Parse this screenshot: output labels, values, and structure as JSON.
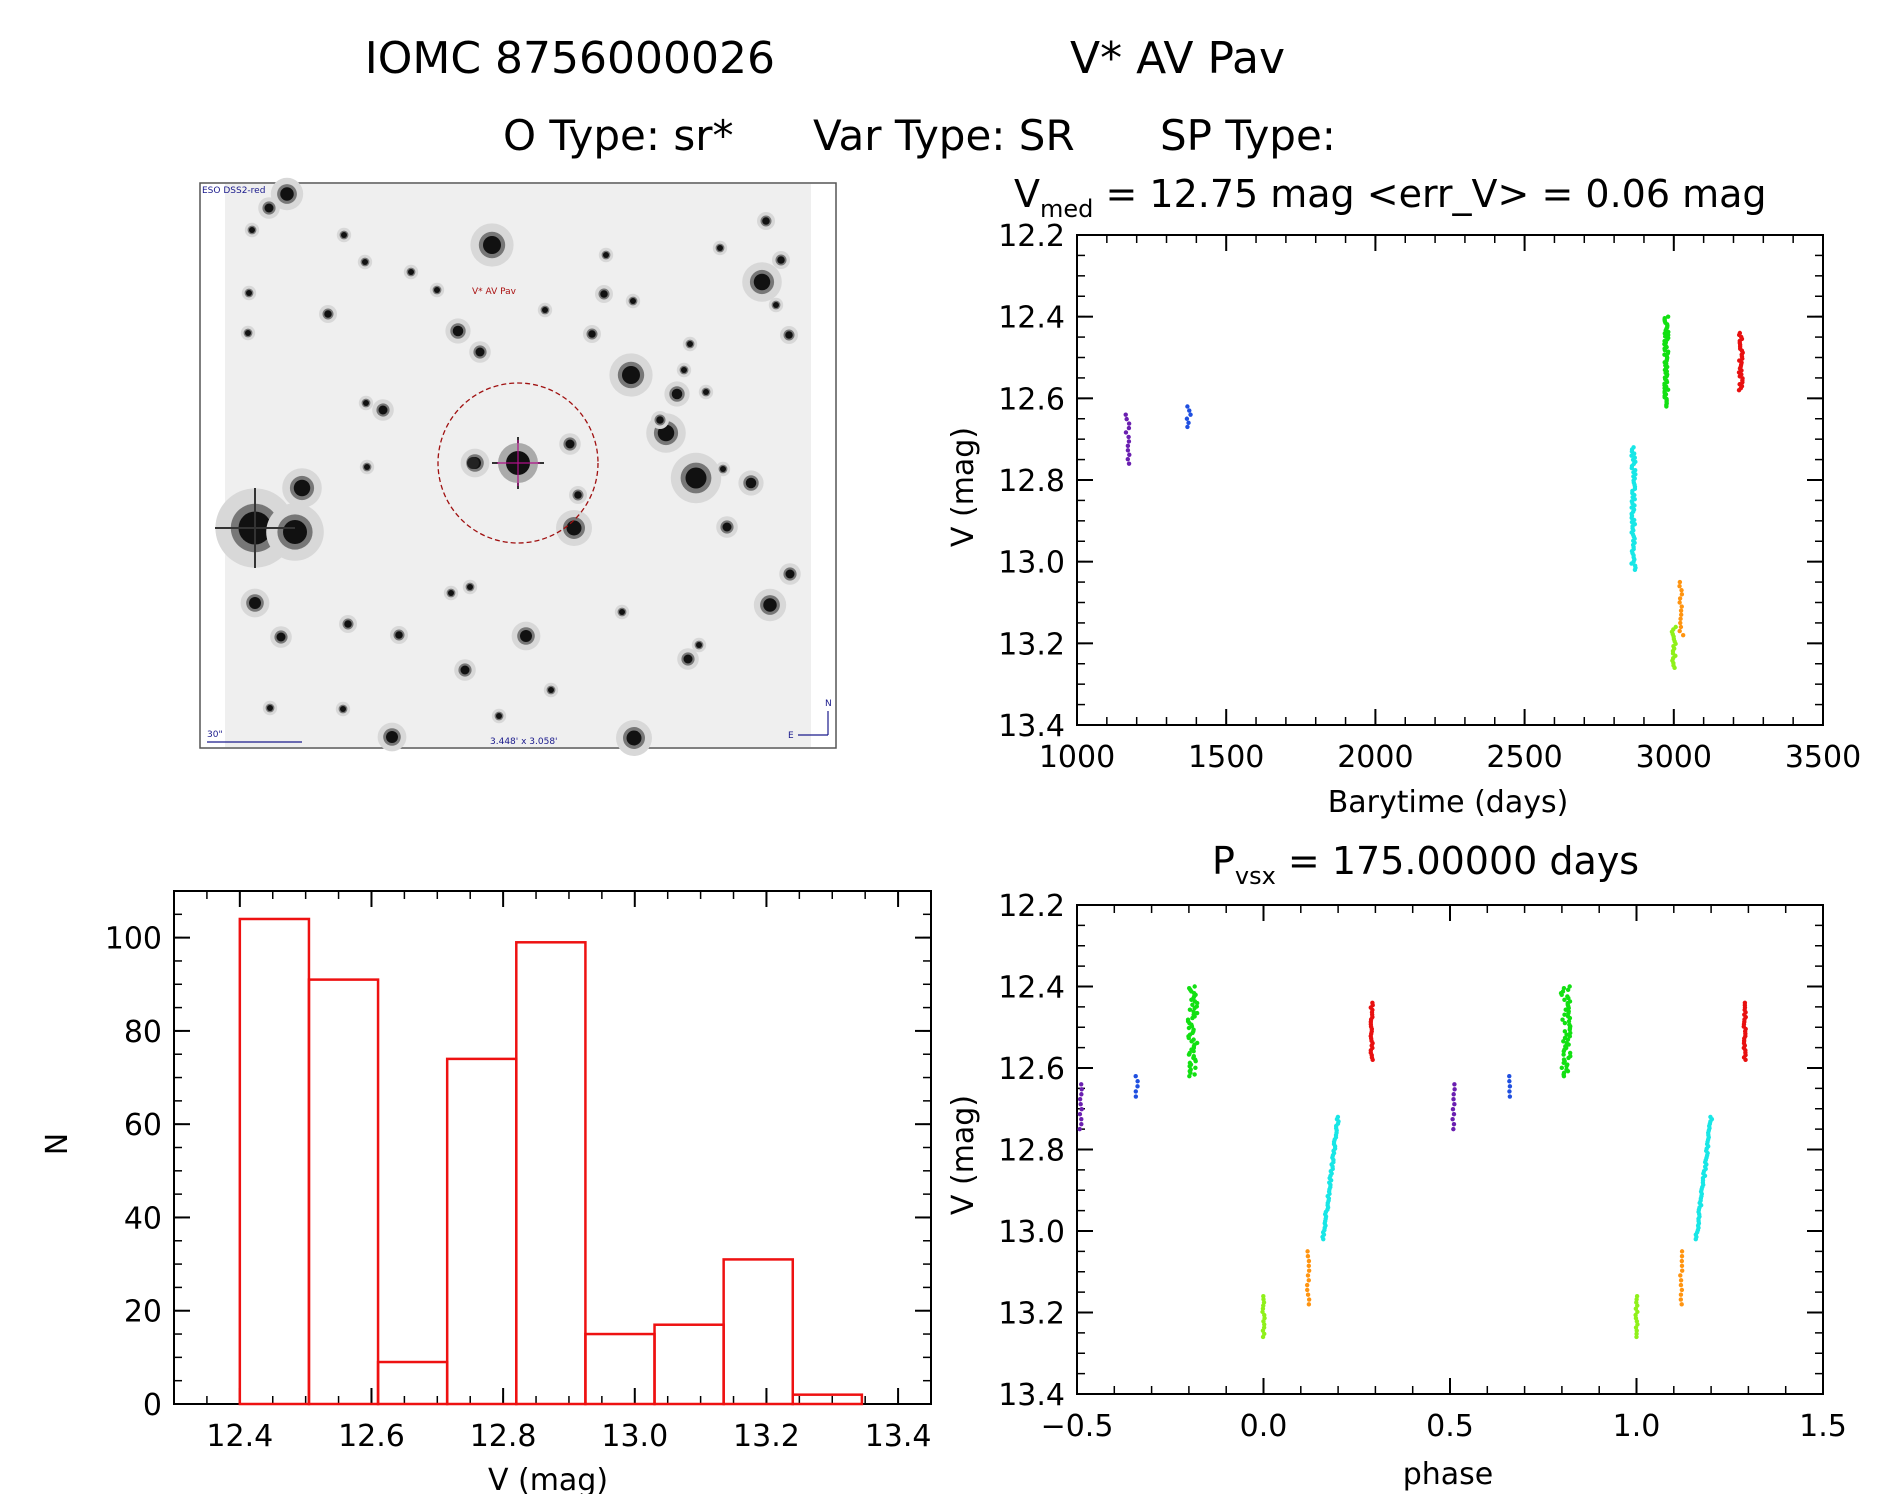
{
  "header": {
    "title_id": "IOMC 8756000026",
    "title_name": "V* AV Pav",
    "line2_otype": "O Type: sr*",
    "line2_vartype": "Var Type: SR",
    "line2_sptype": "SP Type:"
  },
  "finder": {
    "survey_label": "ESO DSS2-red",
    "target_label": "V* AV Pav",
    "scale_label": "30\"",
    "fov_label": "3.448' x 3.058'",
    "north_label": "N",
    "east_label": "E"
  },
  "colors": {
    "purple": "#6a1fb0",
    "blue": "#1f4fe0",
    "green": "#12e012",
    "cyan": "#18e6e6",
    "lime": "#8ff01a",
    "orange": "#ff9410",
    "red": "#e81010",
    "hist": "#ee1111"
  },
  "chart_data": [
    {
      "id": "lightcurve",
      "type": "scatter",
      "title_main": "V",
      "title_sub": "med",
      "title_rest": " = 12.75 mag <err_V> = 0.06 mag",
      "xlabel": "Barytime (days)",
      "ylabel": "V (mag)",
      "xlim": [
        1000,
        3500
      ],
      "ylim": [
        12.2,
        13.4
      ],
      "y_inverted": true,
      "xticks": [
        1000,
        1500,
        2000,
        2500,
        3000,
        3500
      ],
      "yticks": [
        "12.2",
        "12.4",
        "12.6",
        "12.8",
        "13.0",
        "13.2",
        "13.4"
      ],
      "series": [
        {
          "name": "season1",
          "color": "purple",
          "x": 1170,
          "ymin": 12.64,
          "ymax": 12.76,
          "n": 12
        },
        {
          "name": "season2",
          "color": "blue",
          "x": 1375,
          "ymin": 12.62,
          "ymax": 12.67,
          "n": 6
        },
        {
          "name": "season3",
          "color": "cyan",
          "x": 2865,
          "ymin": 12.72,
          "ymax": 13.02,
          "n": 60
        },
        {
          "name": "season4",
          "color": "green",
          "x": 2975,
          "ymin": 12.4,
          "ymax": 12.62,
          "n": 60
        },
        {
          "name": "season5",
          "color": "lime",
          "x": 3000,
          "ymin": 13.16,
          "ymax": 13.26,
          "n": 18
        },
        {
          "name": "season6",
          "color": "orange",
          "x": 3025,
          "ymin": 13.05,
          "ymax": 13.18,
          "n": 14
        },
        {
          "name": "season7",
          "color": "red",
          "x": 3225,
          "ymin": 12.44,
          "ymax": 12.58,
          "n": 30
        }
      ]
    },
    {
      "id": "histogram",
      "type": "bar",
      "title": "",
      "xlabel": "V (mag)",
      "ylabel": "N",
      "xlim": [
        12.3,
        13.45
      ],
      "ylim": [
        0,
        110
      ],
      "xticks": [
        "12.4",
        "12.6",
        "12.8",
        "13.0",
        "13.2",
        "13.4"
      ],
      "yticks": [
        "0",
        "20",
        "40",
        "60",
        "80",
        "100"
      ],
      "bins": [
        {
          "left": 12.4,
          "right": 12.505,
          "count": 104
        },
        {
          "left": 12.505,
          "right": 12.61,
          "count": 91
        },
        {
          "left": 12.61,
          "right": 12.715,
          "count": 9
        },
        {
          "left": 12.715,
          "right": 12.82,
          "count": 74
        },
        {
          "left": 12.82,
          "right": 12.925,
          "count": 99
        },
        {
          "left": 12.925,
          "right": 13.03,
          "count": 15
        },
        {
          "left": 13.03,
          "right": 13.135,
          "count": 17
        },
        {
          "left": 13.135,
          "right": 13.24,
          "count": 31
        },
        {
          "left": 13.24,
          "right": 13.345,
          "count": 2
        }
      ]
    },
    {
      "id": "phased",
      "type": "scatter",
      "title_main": "P",
      "title_sub": "vsx",
      "title_rest": " = 175.00000 days",
      "xlabel": "phase",
      "ylabel": "V (mag)",
      "xlim": [
        -0.5,
        1.5
      ],
      "ylim": [
        12.2,
        13.4
      ],
      "y_inverted": true,
      "xticks": [
        "−0.5",
        "0.0",
        "0.5",
        "1.0",
        "1.5"
      ],
      "yticks": [
        "12.2",
        "12.4",
        "12.6",
        "12.8",
        "13.0",
        "13.2",
        "13.4"
      ],
      "series": [
        {
          "name": "purple-a",
          "color": "purple",
          "x": -0.49,
          "ymin": 12.64,
          "ymax": 12.75,
          "n": 10
        },
        {
          "name": "purple-b",
          "color": "purple",
          "x": 0.51,
          "ymin": 12.64,
          "ymax": 12.75,
          "n": 10
        },
        {
          "name": "blue-a",
          "color": "blue",
          "x": -0.34,
          "ymin": 12.62,
          "ymax": 12.67,
          "n": 5
        },
        {
          "name": "blue-b",
          "color": "blue",
          "x": 0.66,
          "ymin": 12.62,
          "ymax": 12.67,
          "n": 5
        },
        {
          "name": "green-a",
          "color": "green",
          "x": -0.19,
          "ymin": 12.4,
          "ymax": 12.62,
          "n": 55,
          "spread": 0.025
        },
        {
          "name": "green-b",
          "color": "green",
          "x": 0.81,
          "ymin": 12.4,
          "ymax": 12.62,
          "n": 55,
          "spread": 0.025
        },
        {
          "name": "lime-a",
          "color": "lime",
          "x": 0.0,
          "ymin": 13.16,
          "ymax": 13.26,
          "n": 14
        },
        {
          "name": "lime-b",
          "color": "lime",
          "x": 1.0,
          "ymin": 13.16,
          "ymax": 13.26,
          "n": 14
        },
        {
          "name": "orange-a",
          "color": "orange",
          "x": 0.12,
          "ymin": 13.05,
          "ymax": 13.18,
          "n": 12
        },
        {
          "name": "orange-b",
          "color": "orange",
          "x": 1.12,
          "ymin": 13.05,
          "ymax": 13.18,
          "n": 12
        },
        {
          "name": "cyan-a",
          "color": "cyan",
          "x": 0.18,
          "ymin": 12.72,
          "ymax": 13.02,
          "n": 55,
          "slope": -0.04
        },
        {
          "name": "cyan-b",
          "color": "cyan",
          "x": 1.18,
          "ymin": 12.72,
          "ymax": 13.02,
          "n": 55,
          "slope": -0.04
        },
        {
          "name": "red-a",
          "color": "red",
          "x": 0.29,
          "ymin": 12.44,
          "ymax": 12.58,
          "n": 25
        },
        {
          "name": "red-b",
          "color": "red",
          "x": 1.29,
          "ymin": 12.44,
          "ymax": 12.58,
          "n": 25
        }
      ]
    }
  ]
}
